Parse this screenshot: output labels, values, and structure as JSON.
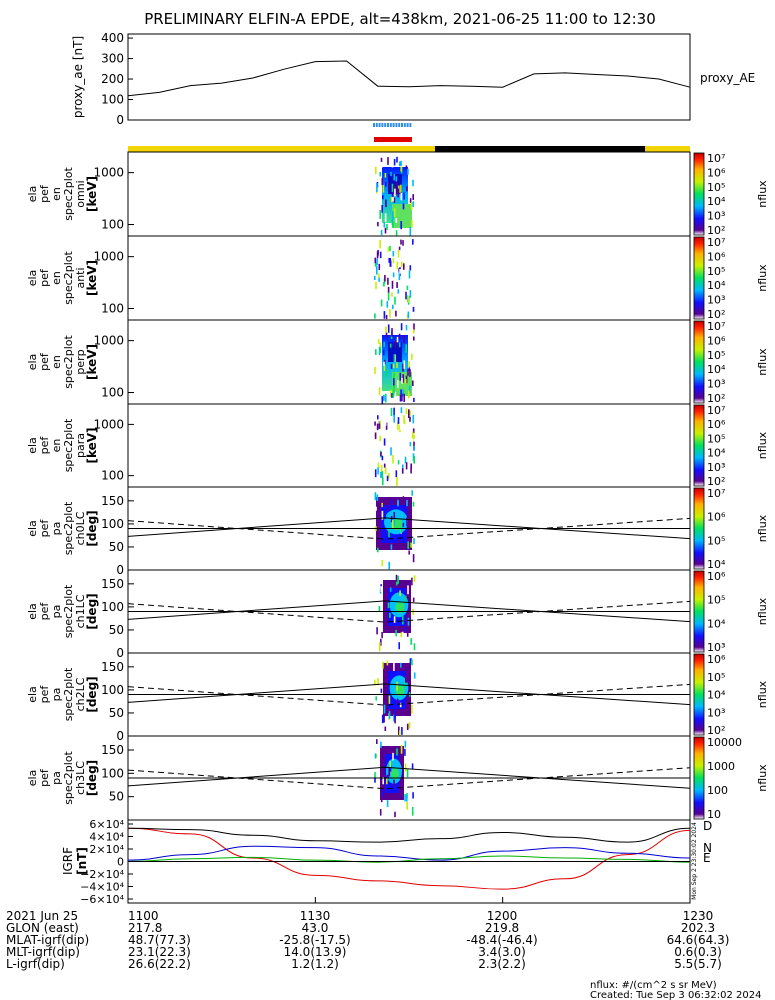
{
  "title": "PRELIMINARY ELFIN-A EPDE, alt=438km, 2021-06-25 11:00 to 12:30",
  "colors": {
    "yellow": "#f2d500",
    "black": "#000000",
    "red": "#e00000",
    "blue": "#3090e8",
    "D": "#e00000",
    "N": "#0000d0",
    "E": "#00b000"
  },
  "chart_data": [
    {
      "type": "line",
      "panel": "proxy_ae",
      "ylabel": "proxy_ae [nT]",
      "right_label": "proxy_AE",
      "yticks": [
        "400",
        "300",
        "200",
        "100",
        "0"
      ],
      "ylim": [
        0,
        420
      ],
      "x_minutes": [
        0,
        5,
        10,
        15,
        20,
        25,
        30,
        35,
        40,
        45,
        50,
        55,
        60,
        65,
        70,
        75,
        80,
        85,
        90
      ],
      "values": [
        118,
        135,
        168,
        180,
        205,
        248,
        285,
        288,
        165,
        162,
        168,
        165,
        160,
        225,
        230,
        222,
        215,
        200,
        160
      ]
    },
    {
      "type": "heatmap",
      "panel": "en omni",
      "ylabel": [
        "ela",
        "pef",
        "en",
        "spec2plot",
        "omni",
        "[keV]"
      ],
      "yticks": [
        "1000",
        "100"
      ],
      "colorbar_label": "nflux",
      "colorbar_ticks": [
        "10⁷",
        "10⁶",
        "10⁵",
        "10⁴",
        "10³",
        "10²"
      ]
    },
    {
      "type": "heatmap",
      "panel": "en anti",
      "ylabel": [
        "ela",
        "pef",
        "en",
        "spec2plot",
        "anti",
        "[keV]"
      ],
      "yticks": [
        "1000",
        "100"
      ],
      "colorbar_label": "nflux",
      "colorbar_ticks": [
        "10⁷",
        "10⁶",
        "10⁵",
        "10⁴",
        "10³",
        "10²"
      ]
    },
    {
      "type": "heatmap",
      "panel": "en perp",
      "ylabel": [
        "ela",
        "pef",
        "en",
        "spec2plot",
        "perp",
        "[keV]"
      ],
      "yticks": [
        "1000",
        "100"
      ],
      "colorbar_label": "nflux",
      "colorbar_ticks": [
        "10⁷",
        "10⁶",
        "10⁵",
        "10⁴",
        "10³",
        "10²"
      ]
    },
    {
      "type": "heatmap",
      "panel": "en para",
      "ylabel": [
        "ela",
        "pef",
        "en",
        "spec2plot",
        "para",
        "[keV]"
      ],
      "yticks": [
        "1000",
        "100"
      ],
      "colorbar_label": "nflux",
      "colorbar_ticks": [
        "10⁷",
        "10⁶",
        "10⁵",
        "10⁴",
        "10³",
        "10²"
      ]
    },
    {
      "type": "heatmap",
      "panel": "pa ch0LC",
      "ylabel": [
        "ela",
        "pef",
        "pa",
        "spec2plot",
        "ch0LC",
        "[deg]"
      ],
      "yticks": [
        "150",
        "100",
        "50",
        "0"
      ],
      "colorbar_label": "nflux",
      "colorbar_ticks": [
        "10⁷",
        "10⁶",
        "10⁵",
        "10⁴"
      ]
    },
    {
      "type": "heatmap",
      "panel": "pa ch1LC",
      "ylabel": [
        "ela",
        "pef",
        "pa",
        "spec2plot",
        "ch1LC",
        "[deg]"
      ],
      "yticks": [
        "150",
        "100",
        "50",
        "0"
      ],
      "colorbar_label": "nflux",
      "colorbar_ticks": [
        "10⁶",
        "10⁵",
        "10⁴",
        "10³"
      ]
    },
    {
      "type": "heatmap",
      "panel": "pa ch2LC",
      "ylabel": [
        "ela",
        "pef",
        "pa",
        "spec2plot",
        "ch2LC",
        "[deg]"
      ],
      "yticks": [
        "150",
        "100",
        "50",
        "0"
      ],
      "colorbar_label": "nflux",
      "colorbar_ticks": [
        "10⁶",
        "10⁵",
        "10⁴",
        "10³",
        "10²"
      ]
    },
    {
      "type": "heatmap",
      "panel": "pa ch3LC",
      "ylabel": [
        "ela",
        "pef",
        "pa",
        "spec2plot",
        "ch3LC",
        "[deg]"
      ],
      "yticks": [
        "150",
        "100",
        "50"
      ],
      "colorbar_label": "nflux",
      "colorbar_ticks": [
        "10000",
        "1000",
        "100",
        "10"
      ]
    },
    {
      "type": "line",
      "panel": "IGRF",
      "ylabel": "IGRF [nT]",
      "yticks": [
        "6×10⁴",
        "4×10⁴",
        "2×10⁴",
        "0",
        "−2×10⁴",
        "−4×10⁴",
        "−6×10⁴"
      ],
      "ylim": [
        -60000,
        60000
      ],
      "x_minutes": [
        0,
        10,
        20,
        30,
        40,
        50,
        60,
        70,
        80,
        90
      ],
      "series": [
        {
          "name": "D",
          "color": "#e00000",
          "values": [
            48000,
            40000,
            5000,
            -20000,
            -28000,
            -35000,
            -40000,
            -25000,
            10000,
            45000
          ]
        },
        {
          "name": "N",
          "color": "#0000d0",
          "values": [
            2000,
            10000,
            22000,
            20000,
            8000,
            2000,
            15000,
            20000,
            12000,
            5000
          ]
        },
        {
          "name": "E",
          "color": "#00b000",
          "values": [
            0,
            4000,
            6000,
            2000,
            -1000,
            4000,
            8000,
            5000,
            3000,
            -1000
          ]
        },
        {
          "name": "",
          "color": "#000000",
          "values": [
            48000,
            46000,
            38000,
            30000,
            28000,
            33000,
            42000,
            35000,
            28000,
            48000
          ]
        }
      ],
      "vertical_text": "Mon Sep  2 23:30:02 2024"
    }
  ],
  "axis_rows": {
    "labels": [
      "2021 Jun 25",
      "GLON (east)",
      "MLAT-igrf(dip)",
      "MLT-igrf(dip)",
      "L-igrf(dip)"
    ],
    "columns": [
      [
        "1100",
        "217.8",
        "48.7(77.3)",
        "23.1(22.3)",
        "26.6(22.2)"
      ],
      [
        "1130",
        "43.0",
        "-25.8(-17.5)",
        "14.0(13.9)",
        "1.2(1.2)"
      ],
      [
        "1200",
        "219.8",
        "-48.4(-46.4)",
        "3.4(3.0)",
        "2.3(2.2)"
      ],
      [
        "1230",
        "202.3",
        "64.6(64.3)",
        "0.6(0.3)",
        "5.5(5.7)"
      ]
    ]
  },
  "footer": {
    "units": "nflux: #/(cm^2 s sr MeV)",
    "created": "Created: Tue Sep  3 06:32:02 2024"
  }
}
